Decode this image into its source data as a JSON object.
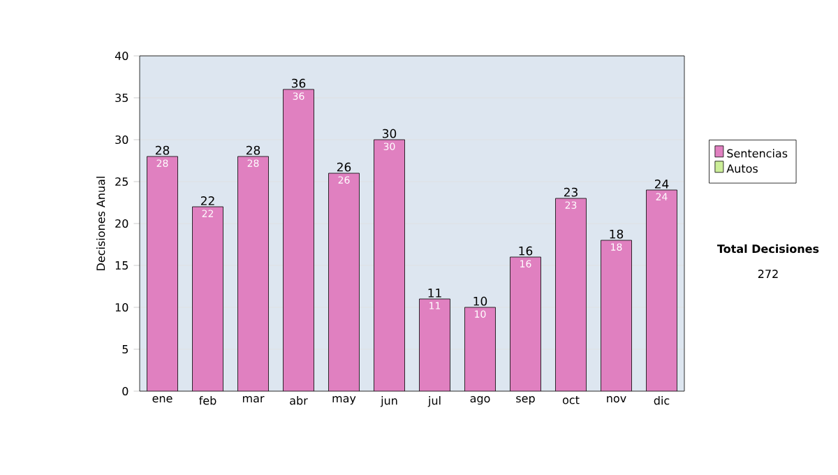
{
  "chart_data": {
    "type": "bar",
    "stacked": true,
    "ylabel": "Decisiones Anual",
    "categories": [
      "ene",
      "feb",
      "mar",
      "abr",
      "may",
      "jun",
      "jul",
      "ago",
      "sep",
      "oct",
      "nov",
      "dic"
    ],
    "series": [
      {
        "name": "Sentencias",
        "color": "#e080c0",
        "values": [
          28,
          22,
          28,
          36,
          26,
          30,
          11,
          10,
          16,
          23,
          18,
          24
        ],
        "value_labels": [
          "28",
          "22",
          "28",
          "36",
          "26",
          "30",
          "11",
          "10",
          "16",
          "23",
          "18",
          "24"
        ]
      },
      {
        "name": "Autos",
        "color": "#ccee99",
        "values": [
          0,
          0,
          0,
          0,
          0,
          0,
          0,
          0,
          0,
          0,
          0,
          0
        ]
      }
    ],
    "totals": [
      "28",
      "22",
      "28",
      "36",
      "26",
      "30",
      "11",
      "10",
      "16",
      "23",
      "18",
      "24"
    ],
    "ylim": [
      0,
      40
    ],
    "yticks": [
      0,
      5,
      10,
      15,
      20,
      25,
      30,
      35,
      40
    ],
    "grid": "y",
    "legend": "right",
    "annotations": [
      "Total Decisiones",
      "272"
    ]
  }
}
